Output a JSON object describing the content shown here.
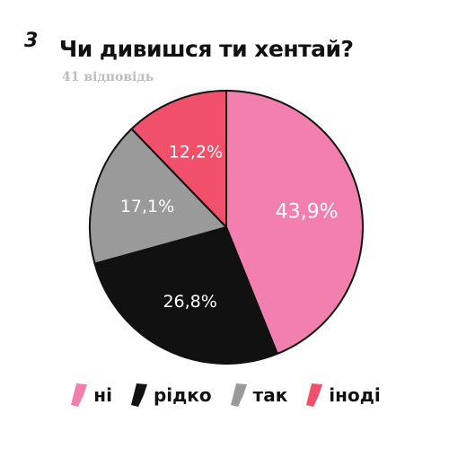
{
  "question_number": "3",
  "chart_data": {
    "type": "pie",
    "title": "Чи дивишся ти хентай?",
    "subtitle": "41 відповідь",
    "slices": [
      {
        "label": "ні",
        "value": 43.9,
        "display": "43,9%",
        "color": "#f27fae"
      },
      {
        "label": "рідко",
        "value": 26.8,
        "display": "26,8%",
        "color": "#111111"
      },
      {
        "label": "так",
        "value": 17.1,
        "display": "17,1%",
        "color": "#9a9a9a"
      },
      {
        "label": "іноді",
        "value": 12.2,
        "display": "12,2%",
        "color": "#f0506a"
      }
    ],
    "legend_position": "bottom"
  }
}
